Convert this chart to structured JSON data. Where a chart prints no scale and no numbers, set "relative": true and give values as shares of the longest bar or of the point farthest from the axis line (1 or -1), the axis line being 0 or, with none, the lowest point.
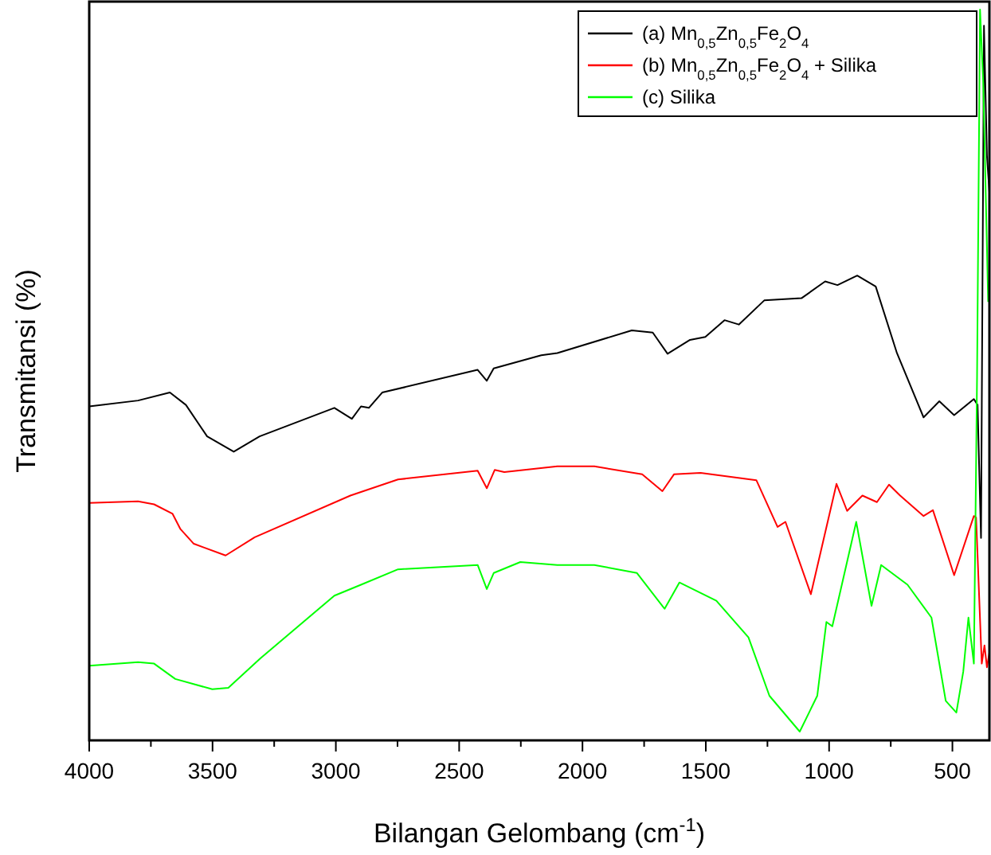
{
  "chart_data": {
    "type": "line",
    "relative": true,
    "xlabel": "Bilangan Gelombang (cm$^{-1}$)",
    "ylabel": "Transmitansi (%)",
    "xlim": [
      4000,
      350
    ],
    "xticks": [
      4000,
      {
        "value": 3750,
        "label": null
      },
      3500,
      {
        "value": 3250,
        "label": null
      },
      3000,
      {
        "value": 2750,
        "label": null
      },
      2500,
      {
        "value": 2250,
        "label": null
      },
      2000,
      {
        "value": 1750,
        "label": null
      },
      1500,
      {
        "value": 1250,
        "label": null
      },
      1000,
      {
        "value": 750,
        "label": null
      },
      500
    ],
    "legend": "top right",
    "line_style": "solid",
    "series": [
      {
        "name": "(a) Mn$_{0,5}$Zn$_{0,5}$Fe$_{2}$O$_{4}$",
        "color": "#000000",
        "x": [
          4000,
          3802,
          3673,
          3608,
          3522,
          3414,
          3309,
          3006,
          2935,
          2898,
          2866,
          2812,
          2425,
          2388,
          2360,
          2167,
          2102,
          1800,
          1715,
          1655,
          1564,
          1502,
          1424,
          1366,
          1263,
          1112,
          1016,
          966,
          886,
          811,
          725,
          617,
          553,
          493,
          413,
          398,
          384,
          372,
          360,
          350
        ],
        "values": [
          0.457,
          0.465,
          0.476,
          0.459,
          0.416,
          0.395,
          0.416,
          0.455,
          0.44,
          0.457,
          0.455,
          0.476,
          0.507,
          0.492,
          0.509,
          0.527,
          0.53,
          0.561,
          0.558,
          0.529,
          0.548,
          0.552,
          0.575,
          0.569,
          0.602,
          0.605,
          0.628,
          0.623,
          0.636,
          0.621,
          0.53,
          0.442,
          0.464,
          0.445,
          0.467,
          0.459,
          0.277,
          0.978,
          0.8,
          0.75
        ]
      },
      {
        "name": "(b) Mn$_{0,5}$Zn$_{0,5}$Fe$_{2}$O$_{4}$ + Silika",
        "color": "#ff0000",
        "x": [
          4000,
          3802,
          3737,
          3662,
          3630,
          3576,
          3447,
          3329,
          2941,
          2748,
          2425,
          2388,
          2356,
          2317,
          2102,
          1952,
          1758,
          1676,
          1629,
          1521,
          1295,
          1209,
          1177,
          1074,
          970,
          927,
          865,
          806,
          757,
          712,
          617,
          579,
          493,
          413,
          404,
          381,
          370,
          360,
          350
        ],
        "values": [
          0.325,
          0.327,
          0.323,
          0.31,
          0.289,
          0.269,
          0.253,
          0.278,
          0.335,
          0.357,
          0.369,
          0.345,
          0.37,
          0.367,
          0.375,
          0.375,
          0.364,
          0.341,
          0.364,
          0.366,
          0.356,
          0.292,
          0.299,
          0.2,
          0.351,
          0.314,
          0.335,
          0.326,
          0.35,
          0.335,
          0.307,
          0.315,
          0.226,
          0.307,
          0.305,
          0.105,
          0.13,
          0.1,
          0.12
        ]
      },
      {
        "name": "(c) Silika",
        "color": "#00ff00",
        "x": [
          4000,
          3802,
          3737,
          3651,
          3501,
          3436,
          3307,
          3006,
          2898,
          2748,
          2425,
          2388,
          2360,
          2252,
          2102,
          1952,
          1779,
          1667,
          1607,
          1457,
          1327,
          1242,
          1119,
          1048,
          1011,
          987,
          890,
          828,
          789,
          682,
          585,
          527,
          484,
          456,
          435,
          413,
          400,
          388,
          375,
          365,
          355
        ],
        "values": [
          0.102,
          0.107,
          0.105,
          0.084,
          0.07,
          0.072,
          0.112,
          0.198,
          0.213,
          0.234,
          0.24,
          0.207,
          0.229,
          0.244,
          0.24,
          0.24,
          0.229,
          0.18,
          0.216,
          0.191,
          0.141,
          0.061,
          0.012,
          0.061,
          0.162,
          0.156,
          0.299,
          0.184,
          0.24,
          0.213,
          0.168,
          0.054,
          0.038,
          0.094,
          0.168,
          0.105,
          0.5,
          1.0,
          0.9,
          0.75,
          0.6
        ]
      }
    ]
  }
}
